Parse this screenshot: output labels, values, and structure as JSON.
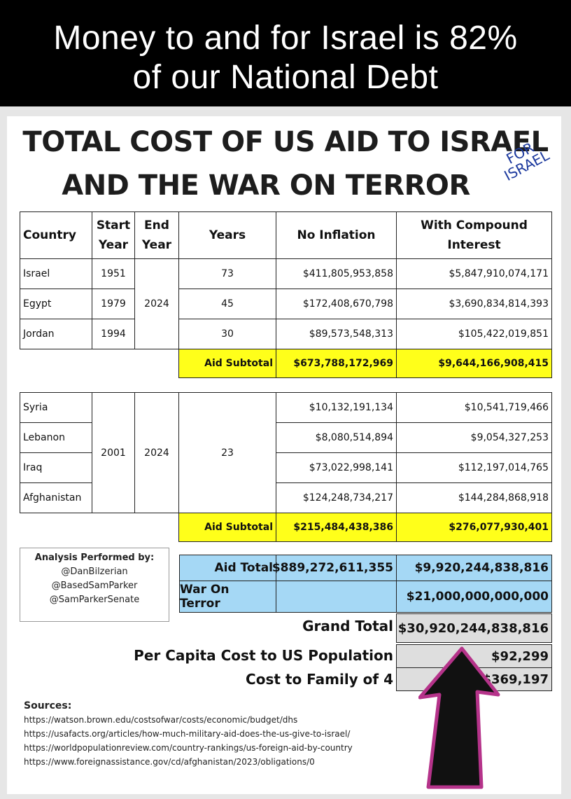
{
  "banner": {
    "line1": "Money to and for Israel is 82%",
    "line2": "of our National Debt"
  },
  "title": {
    "line1": "TOTAL COST OF US AID TO ISRAEL",
    "line2": "AND THE WAR ON TERROR",
    "annotation_line1": "FOR",
    "annotation_line2": "ISRAEL"
  },
  "table": {
    "headers": {
      "country": "Country",
      "start_year": "Start Year",
      "end_year": "End Year",
      "years": "Years",
      "no_inflation": "No Inflation",
      "compound": "With Compound Interest"
    },
    "group1": {
      "rows": [
        {
          "country": "Israel",
          "start": "1951",
          "years": "73",
          "no_inflation": "$411,805,953,858",
          "compound": "$5,847,910,074,171"
        },
        {
          "country": "Egypt",
          "start": "1979",
          "years": "45",
          "no_inflation": "$172,408,670,798",
          "compound": "$3,690,834,814,393"
        },
        {
          "country": "Jordan",
          "start": "1994",
          "years": "30",
          "no_inflation": "$89,573,548,313",
          "compound": "$105,422,019,851"
        }
      ],
      "end_year": "2024",
      "subtotal_label": "Aid Subtotal",
      "subtotal_no_inflation": "$673,788,172,969",
      "subtotal_compound": "$9,644,166,908,415"
    },
    "group2": {
      "rows": [
        {
          "country": "Syria",
          "no_inflation": "$10,132,191,134",
          "compound": "$10,541,719,466"
        },
        {
          "country": "Lebanon",
          "no_inflation": "$8,080,514,894",
          "compound": "$9,054,327,253"
        },
        {
          "country": "Iraq",
          "no_inflation": "$73,022,998,141",
          "compound": "$112,197,014,765"
        },
        {
          "country": "Afghanistan",
          "no_inflation": "$124,248,734,217",
          "compound": "$144,284,868,918"
        }
      ],
      "start": "2001",
      "end_year": "2024",
      "years": "23",
      "subtotal_label": "Aid Subtotal",
      "subtotal_no_inflation": "$215,484,438,386",
      "subtotal_compound": "$276,077,930,401"
    }
  },
  "totals": {
    "aid_total_label": "Aid Total",
    "aid_total_no_inflation": "$889,272,611,355",
    "aid_total_compound": "$9,920,244,838,816",
    "war_label": "War On Terror",
    "war_value": "$21,000,000,000,000",
    "grand_label": "Grand Total",
    "grand_value": "$30,920,244,838,816",
    "per_capita_label": "Per Capita Cost to US Population",
    "per_capita_value": "$92,299",
    "family_label": "Cost to Family of 4",
    "family_value": "$369,197"
  },
  "analysis": {
    "heading": "Analysis Performed by:",
    "names": [
      "@DanBilzerian",
      "@BasedSamParker",
      "@SamParkerSenate"
    ]
  },
  "sources": {
    "heading": "Sources:",
    "links": [
      "https://watson.brown.edu/costsofwar/costs/economic/budget/dhs",
      "https://usafacts.org/articles/how-much-military-aid-does-the-us-give-to-israel/",
      "https://worldpopulationreview.com/country-rankings/us-foreign-aid-by-country",
      "https://www.foreignassistance.gov/cd/afghanistan/2023/obligations/0"
    ]
  },
  "colors": {
    "yellow": "#ffff1a",
    "blue": "#a5d8f5",
    "gray": "#dedede",
    "annotation": "#1d3a9e",
    "arrow_fill": "#111111",
    "arrow_outline": "#b5338a"
  }
}
